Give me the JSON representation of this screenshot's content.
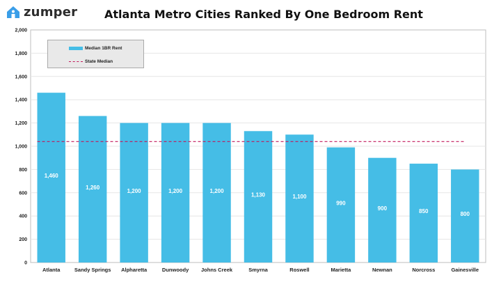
{
  "brand": {
    "name": "zumper",
    "accent": "#3a9ee8"
  },
  "chart_data": {
    "type": "bar",
    "title": "Atlanta Metro Cities Ranked By One Bedroom Rent",
    "categories": [
      "Atlanta",
      "Sandy Springs",
      "Alpharetta",
      "Dunwoody",
      "Johns Creek",
      "Smyrna",
      "Roswell",
      "Marietta",
      "Newnan",
      "Norcross",
      "Gainesville"
    ],
    "series": [
      {
        "name": "Median 1BR Rent",
        "values": [
          1460,
          1260,
          1200,
          1200,
          1200,
          1130,
          1100,
          990,
          900,
          850,
          800
        ],
        "color": "#45bde6"
      }
    ],
    "data_labels": [
      "1,460",
      "1,260",
      "1,200",
      "1,200",
      "1,200",
      "1,130",
      "1,100",
      "990",
      "900",
      "850",
      "800"
    ],
    "reference_line": {
      "name": "State Median",
      "value": 1040,
      "color": "#c2185b",
      "style": "dashed"
    },
    "ylim": [
      0,
      2000
    ],
    "yticks": [
      0,
      200,
      400,
      600,
      800,
      1000,
      1200,
      1400,
      1600,
      1800,
      2000
    ],
    "ytick_labels": [
      "0",
      "200",
      "400",
      "600",
      "800",
      "1,000",
      "1,200",
      "1,400",
      "1,600",
      "1,800",
      "2,000"
    ],
    "grid": true,
    "legend": {
      "placement": "top-left",
      "entries": [
        "Median 1BR Rent",
        "State Median"
      ]
    },
    "xlabel": "",
    "ylabel": ""
  }
}
